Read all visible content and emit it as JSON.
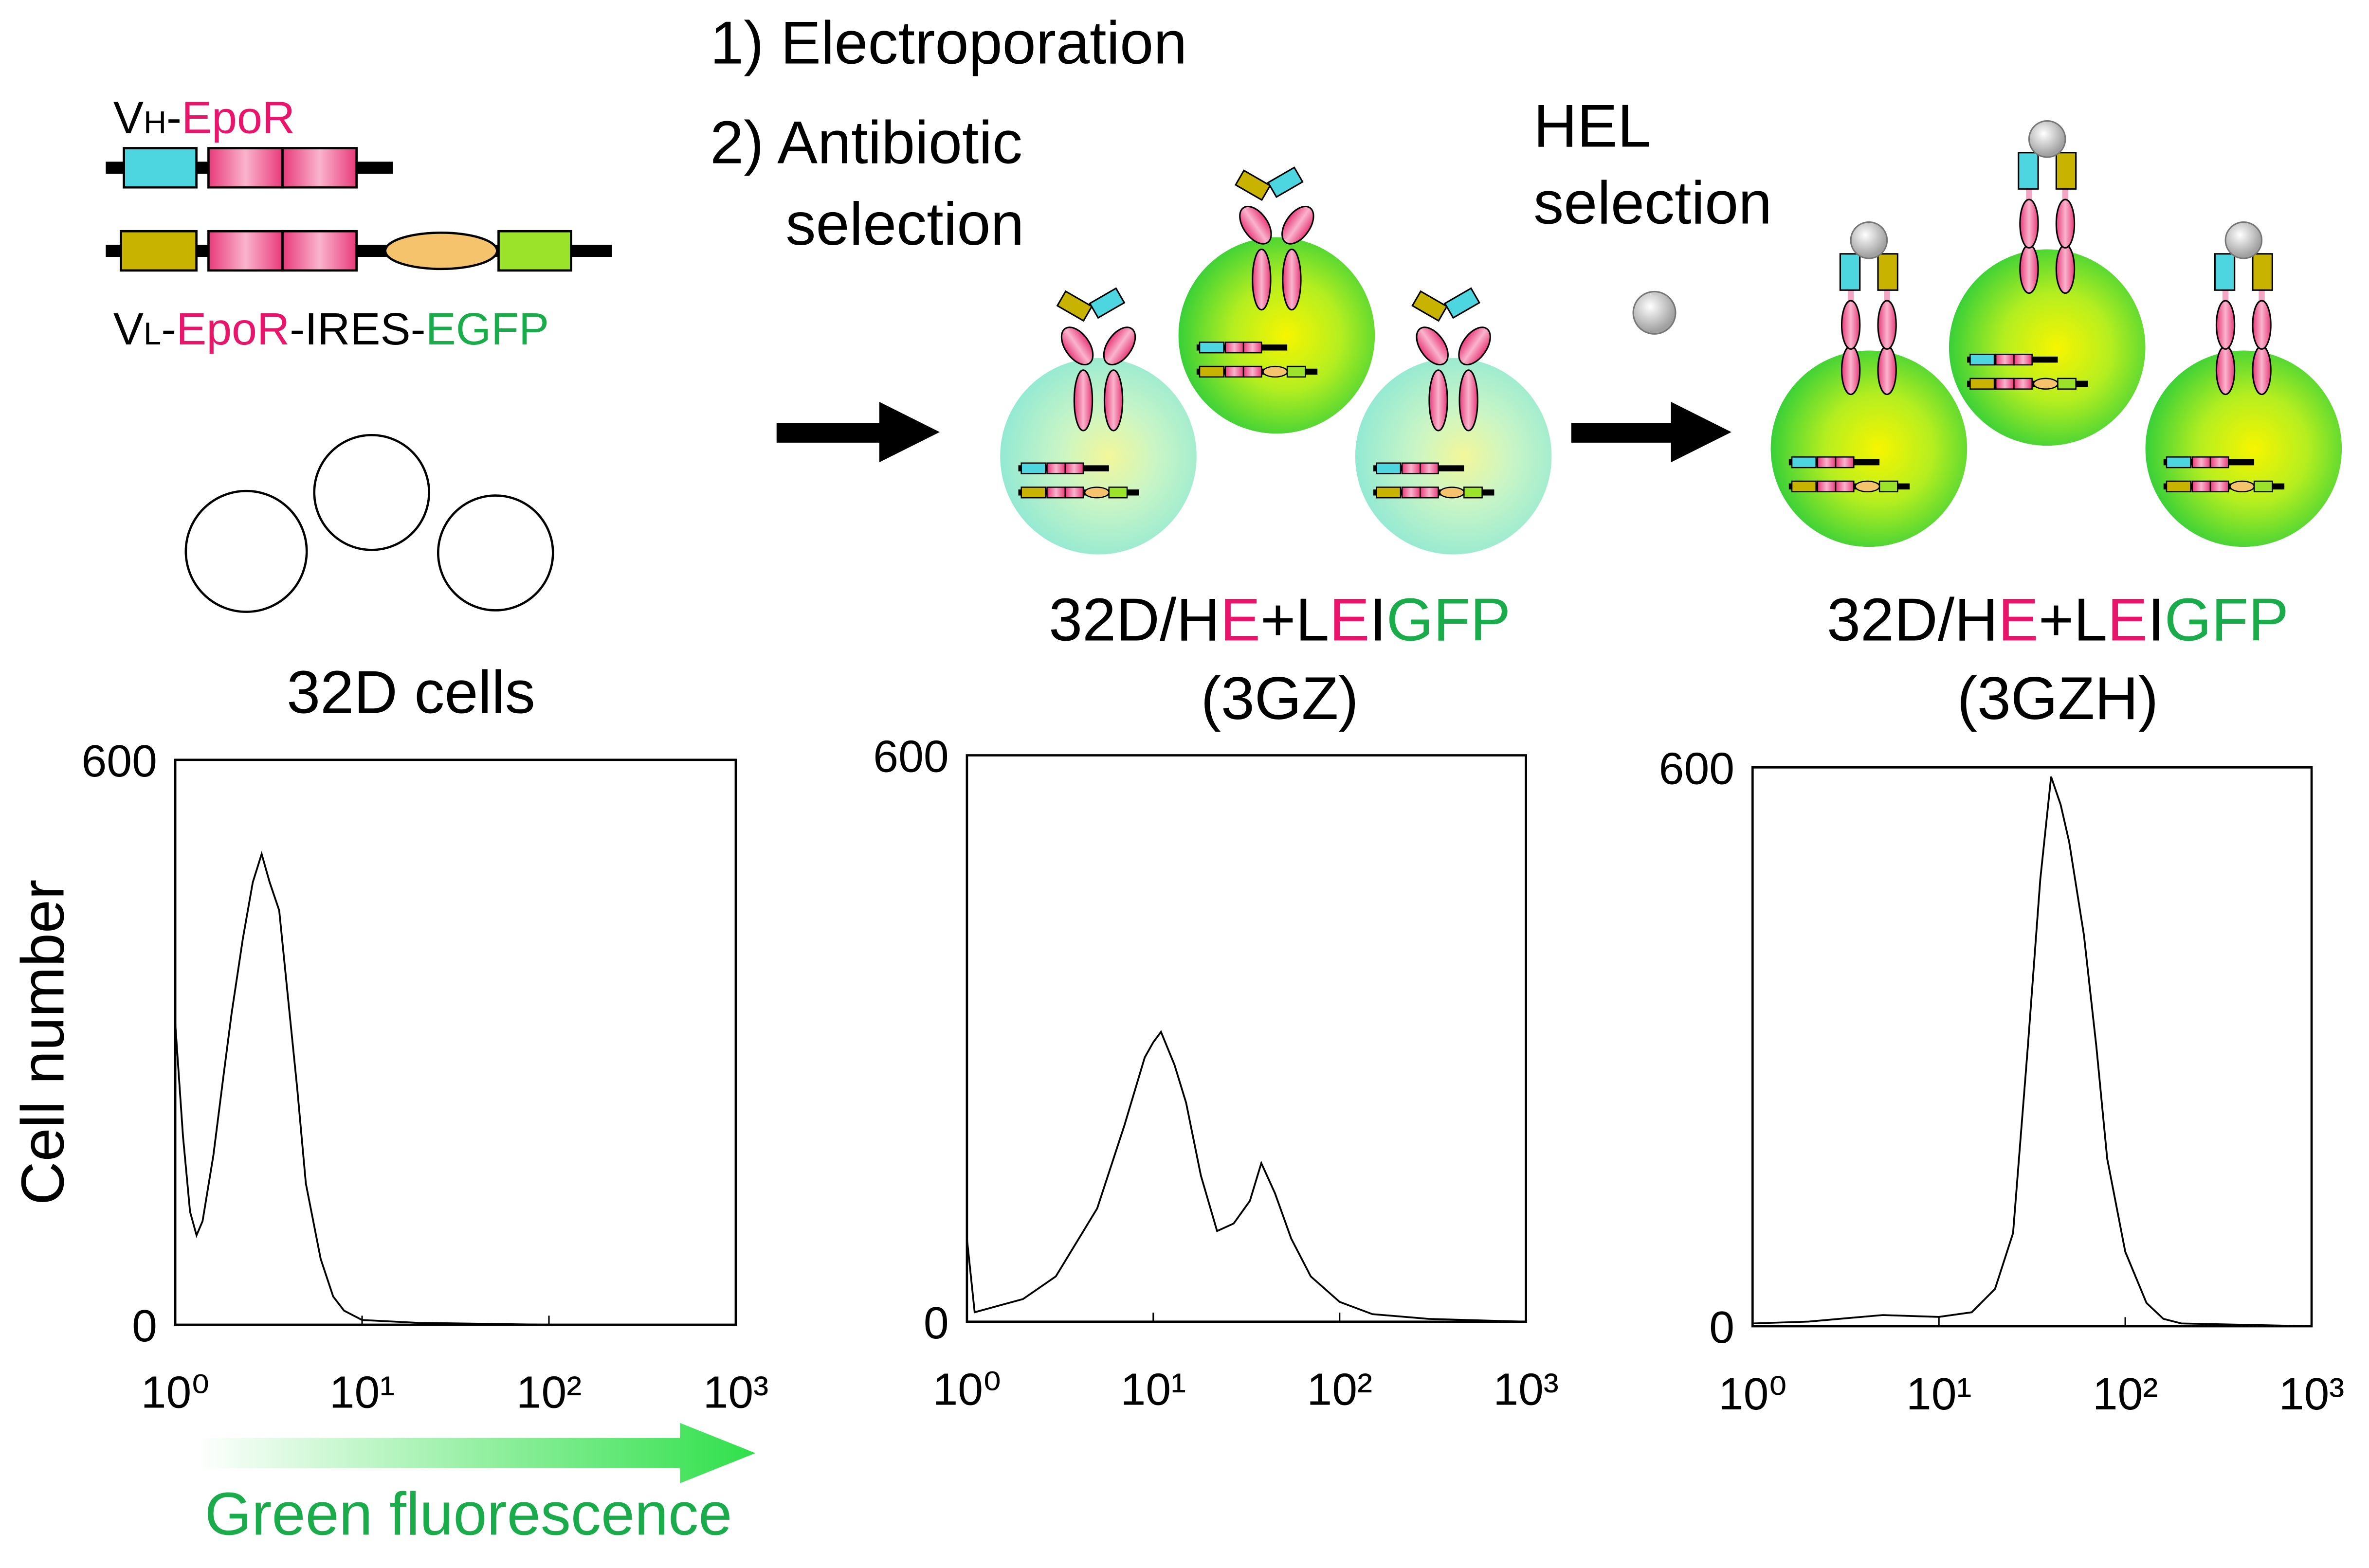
{
  "steps": [
    "1) Electroporation",
    "2) Antibiotic",
    "selection"
  ],
  "hel_label": [
    "HEL",
    "selection"
  ],
  "constructs": {
    "vh": [
      "V",
      "H",
      "-",
      "EpoR"
    ],
    "vl": [
      "V",
      "L",
      "-",
      "EpoR",
      "-IRES-",
      "EGFP"
    ]
  },
  "parental_label": "32D cells",
  "cell_lines": [
    {
      "name": [
        "32D/H",
        "E",
        "+L",
        "E",
        "I",
        "GFP"
      ],
      "code": "(3GZ)"
    },
    {
      "name": [
        "32D/H",
        "E",
        "+L",
        "E",
        "I",
        "GFP"
      ],
      "code": "(3GZH)"
    }
  ],
  "chart_data": [
    {
      "type": "line",
      "xlabel": "Green fluorescence",
      "ylabel": "Cell number",
      "xscale": "log",
      "color": "#000000",
      "xlim": [
        1,
        1000
      ],
      "ylim": [
        0,
        600
      ],
      "xticks": [
        {
          "value": 1,
          "label": "10⁰"
        },
        {
          "value": 10,
          "label": "10¹"
        },
        {
          "value": 100,
          "label": "10²"
        },
        {
          "value": 1000,
          "label": "10³"
        }
      ],
      "yticks": [
        0,
        600
      ],
      "x": [
        1,
        1.1,
        1.2,
        1.3,
        1.4,
        1.6,
        1.8,
        2,
        2.3,
        2.6,
        2.9,
        3.2,
        3.6,
        4,
        4.5,
        5,
        6,
        7,
        8,
        10,
        20,
        100,
        1000
      ],
      "values": [
        320,
        200,
        120,
        95,
        110,
        180,
        260,
        330,
        410,
        470,
        500,
        470,
        440,
        350,
        250,
        150,
        70,
        30,
        15,
        5,
        2,
        0,
        0
      ]
    },
    {
      "type": "line",
      "xscale": "log",
      "color": "#000000",
      "xlim": [
        1,
        1000
      ],
      "ylim": [
        0,
        600
      ],
      "xticks": [
        {
          "value": 1,
          "label": "10⁰"
        },
        {
          "value": 10,
          "label": "10¹"
        },
        {
          "value": 100,
          "label": "10²"
        },
        {
          "value": 1000,
          "label": "10³"
        }
      ],
      "yticks": [
        0,
        600
      ],
      "x": [
        1,
        1.1,
        2,
        3,
        5,
        7,
        9,
        10,
        11,
        13,
        15,
        18,
        22,
        27,
        33,
        38,
        45,
        55,
        70,
        100,
        150,
        300,
        1000
      ],
      "values": [
        88,
        10,
        24,
        48,
        120,
        208,
        280,
        296,
        307,
        272,
        232,
        155,
        96,
        104,
        128,
        168,
        136,
        88,
        48,
        21,
        8,
        3,
        0
      ]
    },
    {
      "type": "line",
      "xscale": "log",
      "color": "#000000",
      "xlim": [
        1,
        1000
      ],
      "ylim": [
        0,
        600
      ],
      "xticks": [
        {
          "value": 1,
          "label": "10⁰"
        },
        {
          "value": 10,
          "label": "10¹"
        },
        {
          "value": 100,
          "label": "10²"
        },
        {
          "value": 1000,
          "label": "10³"
        }
      ],
      "yticks": [
        0,
        600
      ],
      "x": [
        1,
        2,
        5,
        10,
        15,
        20,
        25,
        30,
        35,
        40,
        45,
        50,
        60,
        70,
        80,
        100,
        130,
        160,
        200,
        1000
      ],
      "values": [
        3,
        5,
        12,
        10,
        15,
        40,
        100,
        300,
        480,
        590,
        560,
        520,
        420,
        300,
        180,
        80,
        25,
        8,
        3,
        0
      ]
    }
  ]
}
